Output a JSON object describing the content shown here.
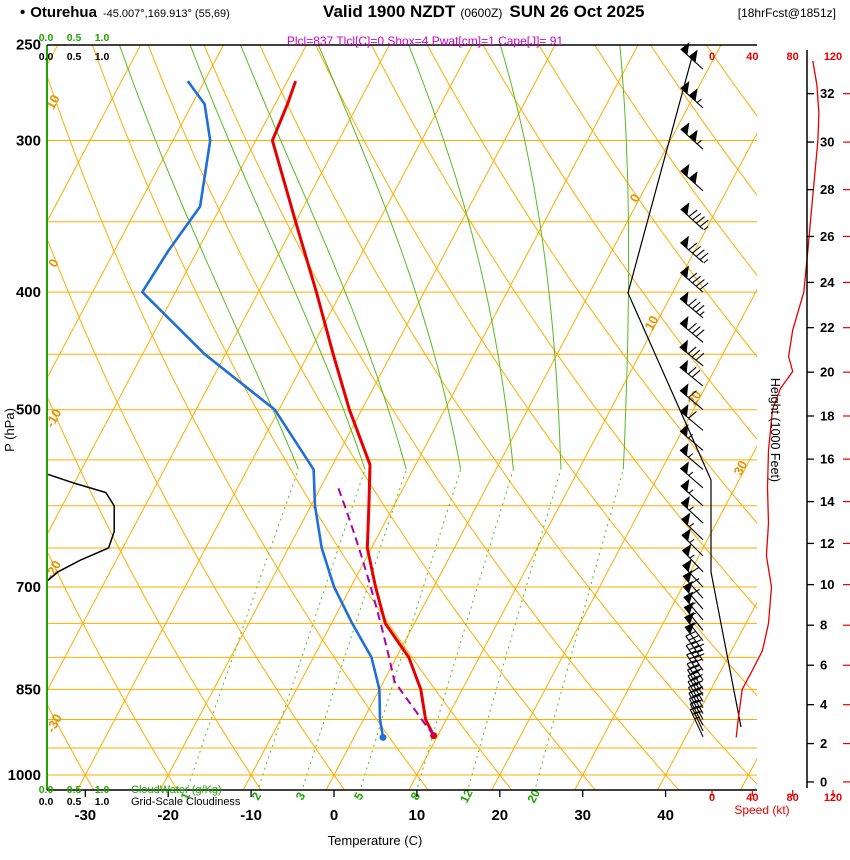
{
  "header": {
    "bullet": "•",
    "station": "Oturehua",
    "coords": "-45.007°,169.913° (55,69)",
    "valid": "Valid 1900 NZDT",
    "valid_utc": "(0600Z)",
    "valid_date": "SUN 26 Oct 2025",
    "forecast_info": "[18hrFcst@1851z]",
    "parameters": "Plcl=837 Tlcl[C]=0 Shox=4 Pwat[cm]=1 Cape[J]= 91"
  },
  "axes": {
    "pressure_label": "P (hPa)",
    "temperature_label": "Temperature (C)",
    "height_label": "Height (1000 Feet)",
    "speed_label": "Speed (kt)",
    "cloudwater_label": "CloudWater (g/Kg)",
    "cloudiness_label": "Grid-Scale Cloudiness"
  },
  "colors": {
    "grid_orange": "#ffae00",
    "label_orange": "#e39500",
    "green": "#55bb22",
    "green_text": "#1fa300",
    "temperature_red": "#e60000",
    "dewpoint_blue": "#1e6fd9",
    "parcel_magenta": "#aa00aa",
    "speed_red": "#e60000",
    "magenta_text": "#cc00cc",
    "black": "#000000"
  },
  "chart_data": {
    "type": "skewt-logp",
    "title": "Oturehua sounding Valid 1900 NZDT (0600Z) SUN 26 Oct 2025",
    "pressure_ticks_hPa": [
      250,
      300,
      400,
      500,
      700,
      850,
      1000
    ],
    "isobar_lines_hPa": [
      250,
      300,
      350,
      400,
      450,
      500,
      550,
      600,
      650,
      700,
      750,
      800,
      850,
      900,
      950,
      1000,
      1050
    ],
    "temperature_ticks_C": [
      -30,
      -20,
      -10,
      0,
      10,
      20,
      30,
      40
    ],
    "isotherm_lines_C": {
      "min": -80,
      "max": 50,
      "step": 10
    },
    "isotherm_labels_C": [
      0,
      10,
      20,
      30
    ],
    "dry_adiabats_C": {
      "min": -40,
      "max": 140,
      "step": 10
    },
    "dry_adiabat_labels_C": [
      10,
      0,
      -10,
      -20,
      -30
    ],
    "mixing_ratio_lines_g_kg": [
      1,
      2,
      3,
      5,
      8,
      12,
      20
    ],
    "height_ticks_kft": [
      0,
      2,
      4,
      6,
      8,
      10,
      12,
      14,
      16,
      18,
      20,
      22,
      24,
      26,
      28,
      30,
      32
    ],
    "speed_ticks_kt": [
      0,
      40,
      80,
      120
    ],
    "cloud_scale_ticks": [
      "0.0",
      "0.5",
      "1.0"
    ],
    "temperature_profile_hPa_C": [
      [
        928,
        9.5
      ],
      [
        900,
        7.5
      ],
      [
        850,
        5.0
      ],
      [
        800,
        1.5
      ],
      [
        750,
        -3.5
      ],
      [
        700,
        -7.0
      ],
      [
        650,
        -10.5
      ],
      [
        600,
        -13.0
      ],
      [
        555,
        -15.5
      ],
      [
        500,
        -21.5
      ],
      [
        450,
        -27.0
      ],
      [
        400,
        -33.0
      ],
      [
        350,
        -40.0
      ],
      [
        300,
        -48.0
      ],
      [
        280,
        -48.5
      ],
      [
        268,
        -49.0
      ]
    ],
    "dewpoint_profile_hPa_C": [
      [
        931,
        3.5
      ],
      [
        900,
        2.0
      ],
      [
        850,
        0.0
      ],
      [
        800,
        -3.0
      ],
      [
        750,
        -7.5
      ],
      [
        700,
        -12.0
      ],
      [
        650,
        -16.0
      ],
      [
        600,
        -19.5
      ],
      [
        560,
        -22.0
      ],
      [
        500,
        -30.5
      ],
      [
        450,
        -42.5
      ],
      [
        400,
        -54.0
      ],
      [
        370,
        -53.5
      ],
      [
        340,
        -52.5
      ],
      [
        300,
        -55.5
      ],
      [
        280,
        -58.5
      ],
      [
        268,
        -62.0
      ]
    ],
    "parcel": {
      "p_surface_hPa": 928,
      "p_lcl_hPa": 837,
      "t_lcl_C": 0,
      "p_top_hPa": 570
    },
    "wind_speed_profile_hPa_kt": [
      [
        931,
        24
      ],
      [
        900,
        26
      ],
      [
        850,
        30
      ],
      [
        820,
        40
      ],
      [
        790,
        50
      ],
      [
        750,
        56
      ],
      [
        700,
        59
      ],
      [
        660,
        54
      ],
      [
        620,
        56
      ],
      [
        580,
        55
      ],
      [
        540,
        56
      ],
      [
        500,
        60
      ],
      [
        480,
        68
      ],
      [
        465,
        80
      ],
      [
        452,
        76
      ],
      [
        430,
        80
      ],
      [
        400,
        91
      ],
      [
        370,
        95
      ],
      [
        340,
        99
      ],
      [
        300,
        105
      ],
      [
        285,
        106
      ],
      [
        270,
        104
      ],
      [
        258,
        100
      ]
    ],
    "wind_barbs_hPa_deg_kt": [
      [
        930,
        335,
        25
      ],
      [
        920,
        335,
        25
      ],
      [
        910,
        333,
        26
      ],
      [
        900,
        332,
        27
      ],
      [
        890,
        331,
        28
      ],
      [
        880,
        330,
        28
      ],
      [
        870,
        330,
        29
      ],
      [
        860,
        329,
        30
      ],
      [
        850,
        328,
        30
      ],
      [
        835,
        327,
        35
      ],
      [
        820,
        326,
        40
      ],
      [
        805,
        325,
        46
      ],
      [
        790,
        323,
        50
      ],
      [
        775,
        322,
        53
      ],
      [
        760,
        321,
        55
      ],
      [
        745,
        320,
        57
      ],
      [
        730,
        319,
        58
      ],
      [
        715,
        318,
        58
      ],
      [
        700,
        317,
        59
      ],
      [
        680,
        316,
        57
      ],
      [
        660,
        315,
        54
      ],
      [
        640,
        314,
        55
      ],
      [
        620,
        313,
        56
      ],
      [
        600,
        312,
        55
      ],
      [
        580,
        311,
        55
      ],
      [
        560,
        310,
        56
      ],
      [
        540,
        310,
        56
      ],
      [
        520,
        310,
        58
      ],
      [
        500,
        310,
        60
      ],
      [
        478,
        309,
        68
      ],
      [
        460,
        309,
        78
      ],
      [
        440,
        310,
        80
      ],
      [
        420,
        310,
        84
      ],
      [
        400,
        311,
        91
      ],
      [
        378,
        311,
        94
      ],
      [
        355,
        312,
        97
      ],
      [
        330,
        312,
        100
      ],
      [
        305,
        312,
        104
      ],
      [
        282,
        312,
        106
      ],
      [
        262,
        312,
        102
      ]
    ],
    "cloudiness_profile_hPa_frac": [
      [
        565,
        0
      ],
      [
        575,
        0.5
      ],
      [
        585,
        1.05
      ],
      [
        600,
        1.2
      ],
      [
        630,
        1.2
      ],
      [
        650,
        1.1
      ],
      [
        665,
        0.6
      ],
      [
        680,
        0.2
      ],
      [
        692,
        0
      ]
    ],
    "cloudwater_profile_hPa_gkg": [
      [
        1030,
        0
      ],
      [
        250,
        0
      ]
    ],
    "indices": {
      "Plcl_hPa": 837,
      "Tlcl_C": 0,
      "Showalter": 4,
      "Pwat_cm": 1,
      "Cape_J": 91
    }
  }
}
